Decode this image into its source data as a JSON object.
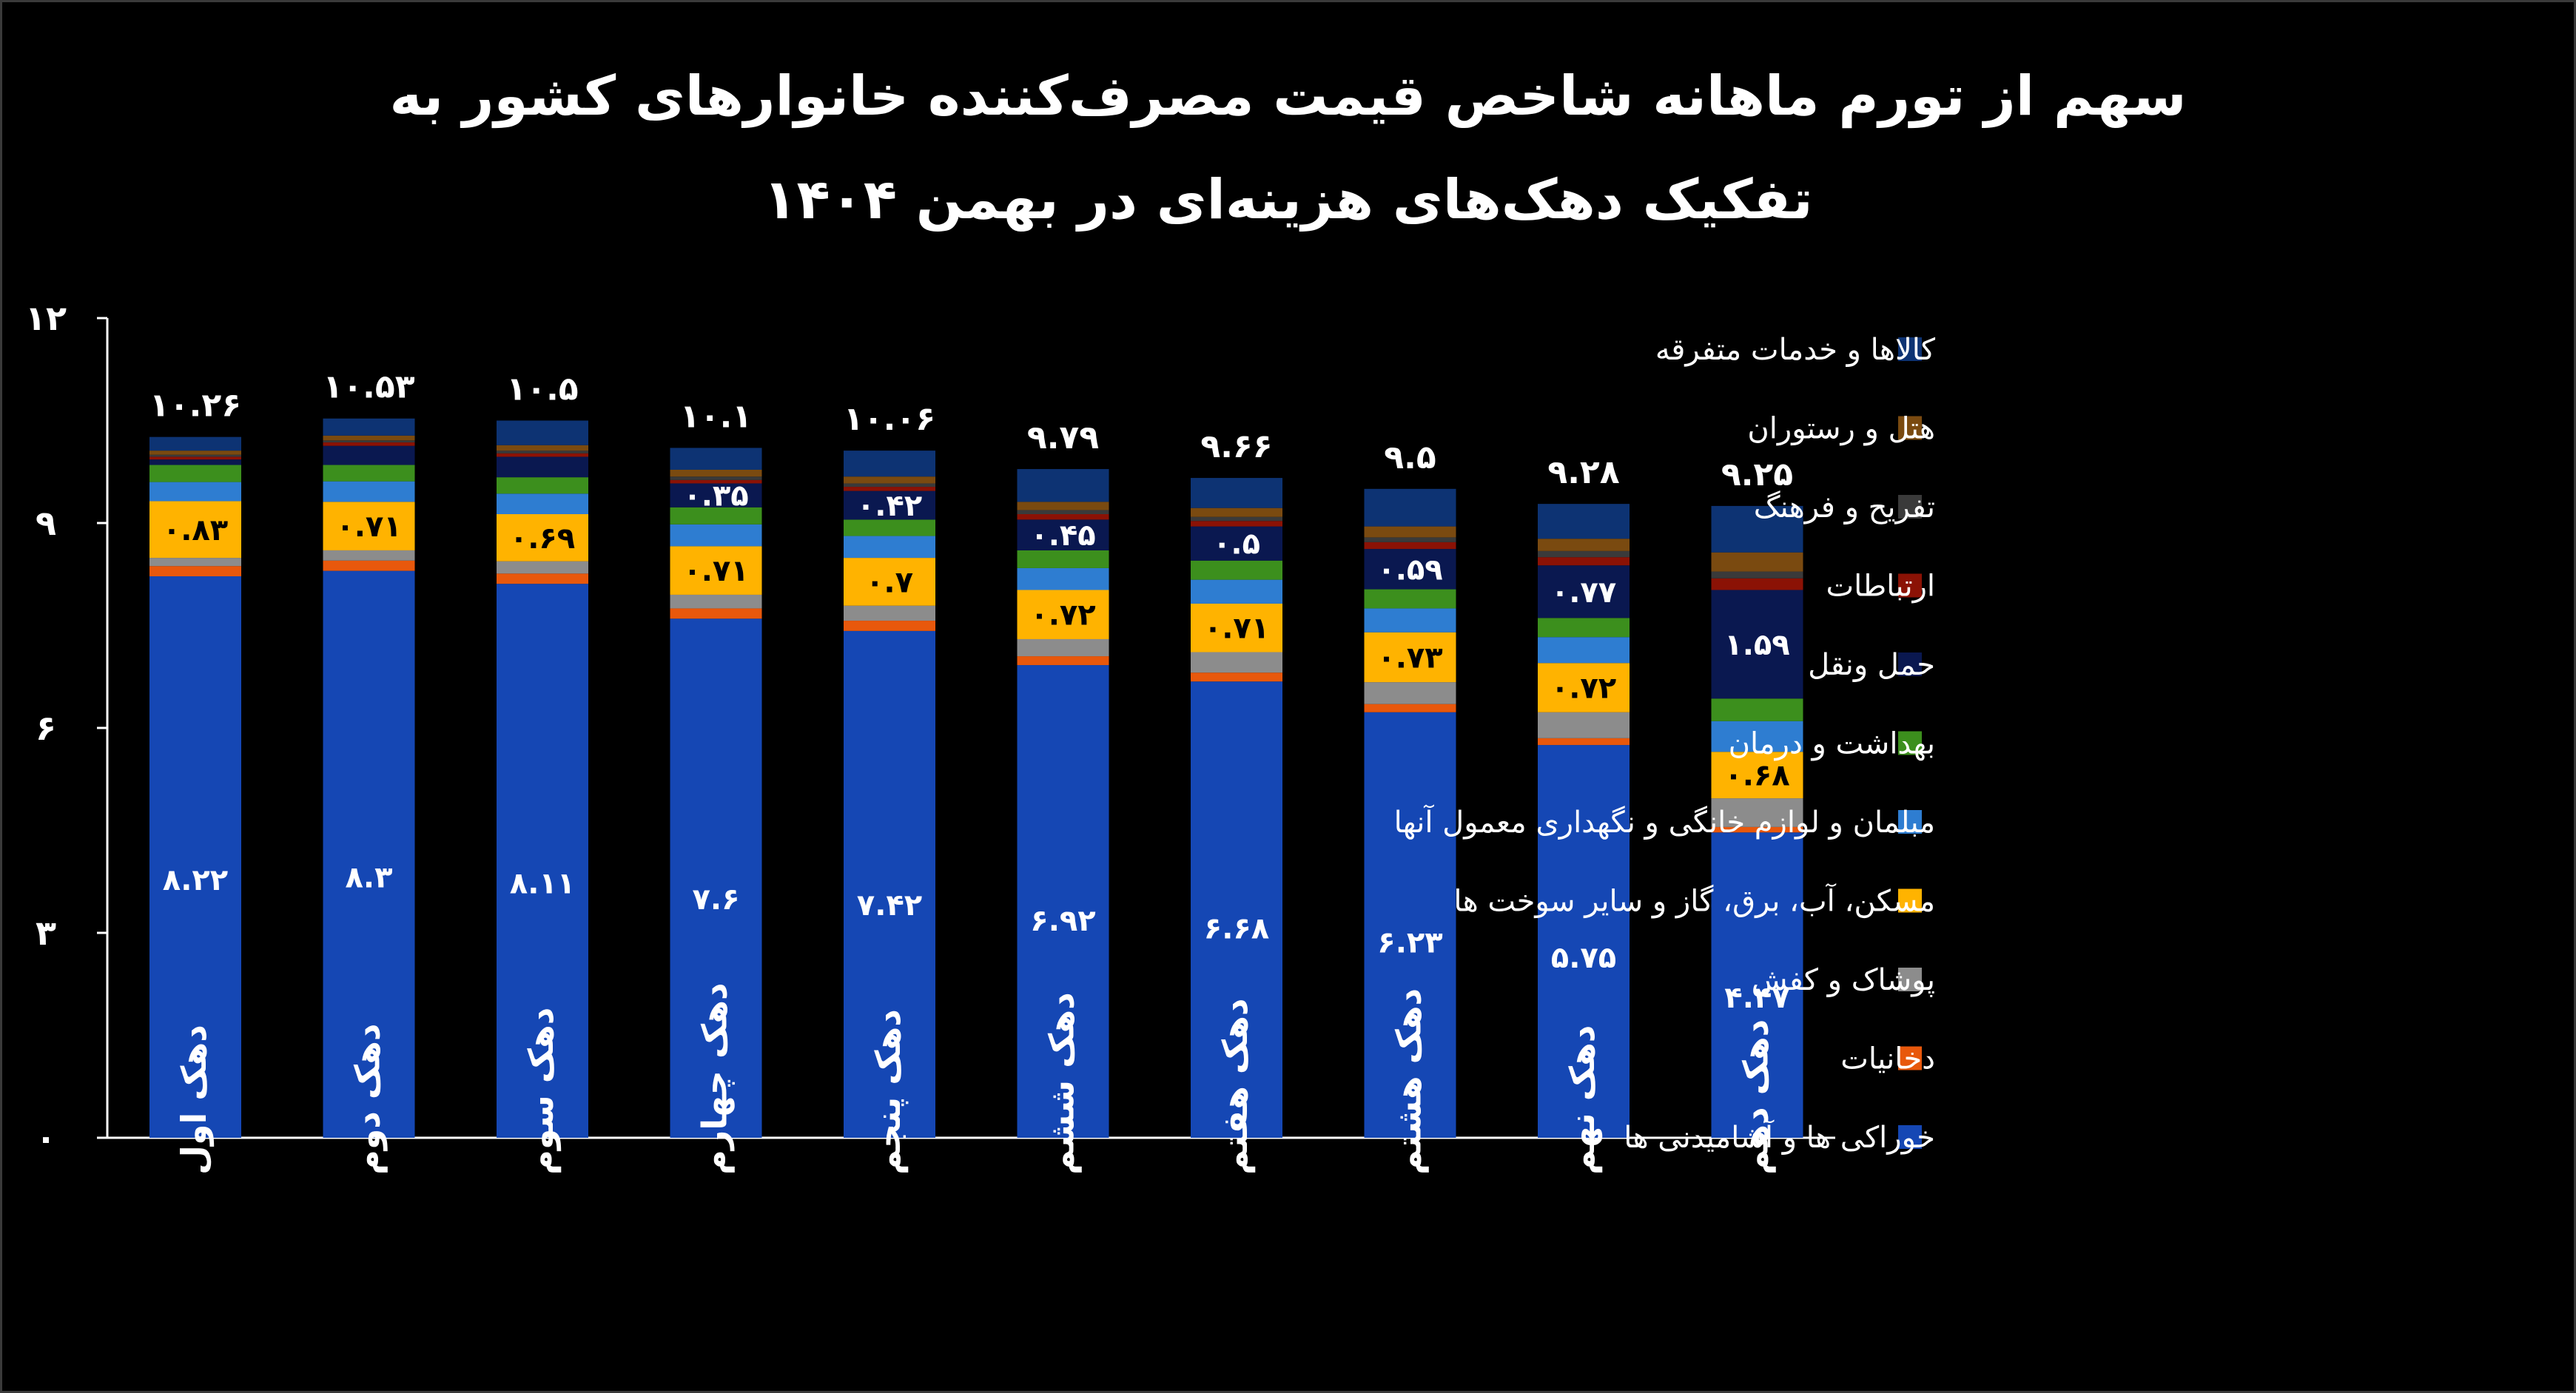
{
  "title": {
    "line1": "سهم از تورم ماهانه شاخص قیمت مصرف‌کننده خانوارهای کشور به",
    "line2": "تفکیک دهک‌های هزینه‌ای در بهمن ۱۴۰۴"
  },
  "chart_data": {
    "type": "bar",
    "stacked": true,
    "ylim": [
      0,
      12
    ],
    "yticks": [
      {
        "value": 0,
        "label": "۰"
      },
      {
        "value": 3,
        "label": "۳"
      },
      {
        "value": 6,
        "label": "۶"
      },
      {
        "value": 9,
        "label": "۹"
      },
      {
        "value": 12,
        "label": "۱۲"
      }
    ],
    "grid": false,
    "legend_position": "right",
    "categories": [
      "دهک اول",
      "دهک دوم",
      "دهک سوم",
      "دهک چهارم",
      "دهک پنجم",
      "دهک ششم",
      "دهک هفتم",
      "دهک هشتم",
      "دهک نهم",
      "دهک دهم"
    ],
    "totals": [
      10.26,
      10.53,
      10.5,
      10.1,
      10.06,
      9.79,
      9.66,
      9.5,
      9.28,
      9.25
    ],
    "total_labels": [
      "۱۰.۲۶",
      "۱۰.۵۳",
      "۱۰.۵",
      "۱۰.۱",
      "۱۰.۰۶",
      "۹.۷۹",
      "۹.۶۶",
      "۹.۵",
      "۹.۲۸",
      "۹.۲۵"
    ],
    "series": [
      {
        "name": "خوراکی ها و آشامیدنی ها",
        "color": "#1547b4",
        "values": [
          8.22,
          8.3,
          8.11,
          7.6,
          7.42,
          6.92,
          6.68,
          6.23,
          5.75,
          4.47
        ],
        "labels": [
          "۸.۲۲",
          "۸.۳",
          "۸.۱۱",
          "۷.۶",
          "۷.۴۲",
          "۶.۹۲",
          "۶.۶۸",
          "۶.۲۳",
          "۵.۷۵",
          "۴.۴۷"
        ]
      },
      {
        "name": "دخانیات",
        "color": "#e8580c",
        "values": [
          0.15,
          0.15,
          0.15,
          0.15,
          0.15,
          0.13,
          0.13,
          0.12,
          0.1,
          0.08
        ]
      },
      {
        "name": "پوشاک و کفش",
        "color": "#8c8c8c",
        "values": [
          0.12,
          0.15,
          0.18,
          0.2,
          0.22,
          0.25,
          0.3,
          0.32,
          0.38,
          0.42
        ]
      },
      {
        "name": "مسکن، آب، برق، گاز و سایر سوخت ها",
        "color": "#ffb300",
        "values": [
          0.83,
          0.71,
          0.69,
          0.71,
          0.7,
          0.72,
          0.71,
          0.73,
          0.72,
          0.68
        ],
        "labels": [
          "۰.۸۳",
          "۰.۷۱",
          "۰.۶۹",
          "۰.۷۱",
          "۰.۷",
          "۰.۷۲",
          "۰.۷۱",
          "۰.۷۳",
          "۰.۷۲",
          "۰.۶۸"
        ]
      },
      {
        "name": "مبلمان و لوازم خانگی و نگهداری معمول آنها",
        "color": "#2e7dd1",
        "values": [
          0.28,
          0.3,
          0.3,
          0.32,
          0.32,
          0.32,
          0.35,
          0.35,
          0.38,
          0.45
        ]
      },
      {
        "name": "بهداشت و درمان",
        "color": "#3c8f1d",
        "values": [
          0.25,
          0.24,
          0.24,
          0.25,
          0.24,
          0.26,
          0.28,
          0.28,
          0.28,
          0.33
        ]
      },
      {
        "name": "حمل ونقل",
        "color": "#0a1850",
        "values": [
          0.08,
          0.28,
          0.3,
          0.35,
          0.42,
          0.45,
          0.5,
          0.59,
          0.77,
          1.59
        ],
        "labels": [
          "",
          "",
          "",
          "۰.۳۵",
          "۰.۴۲",
          "۰.۴۵",
          "۰.۵",
          "۰.۵۹",
          "۰.۷۷",
          "۱.۵۹"
        ]
      },
      {
        "name": "ارتباطات",
        "color": "#8b1205",
        "values": [
          0.04,
          0.05,
          0.05,
          0.05,
          0.06,
          0.08,
          0.08,
          0.1,
          0.12,
          0.17
        ]
      },
      {
        "name": "تفریح و فرهنگ",
        "color": "#3a3a3a",
        "values": [
          0.03,
          0.03,
          0.04,
          0.05,
          0.05,
          0.06,
          0.06,
          0.07,
          0.09,
          0.1
        ]
      },
      {
        "name": "هتل و رستوران",
        "color": "#7a4a10",
        "values": [
          0.06,
          0.07,
          0.08,
          0.1,
          0.1,
          0.12,
          0.13,
          0.16,
          0.18,
          0.28
        ]
      },
      {
        "name": "کالاها و خدمات متفرقه",
        "color": "#0d3373",
        "values": [
          0.2,
          0.25,
          0.36,
          0.32,
          0.38,
          0.48,
          0.44,
          0.55,
          0.51,
          0.68
        ]
      }
    ]
  }
}
